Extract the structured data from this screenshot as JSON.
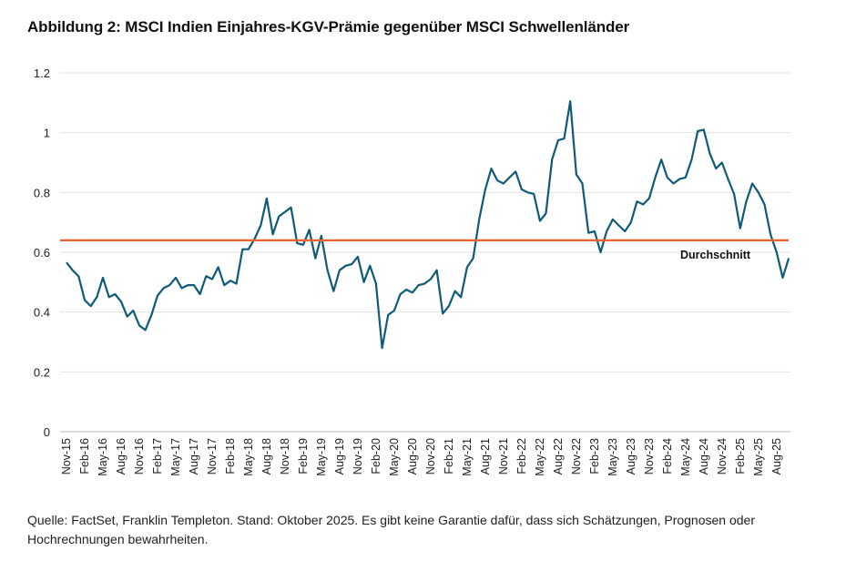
{
  "title": "Abbildung 2: MSCI Indien Einjahres-KGV-Prämie gegenüber MSCI Schwellenländer",
  "footer": "Quelle: FactSet, Franklin Templeton. Stand: Oktober 2025. Es gibt keine Garantie dafür, dass sich Schätzungen, Prognosen oder Hochrechnungen bewahrheiten.",
  "chart_data": {
    "type": "line",
    "title": "Abbildung 2: MSCI Indien Einjahres-KGV-Prämie gegenüber MSCI Schwellenländer",
    "xlabel": "",
    "ylabel": "",
    "ylim": [
      0,
      1.2
    ],
    "y_ticks": [
      "0",
      "0.2",
      "0.4",
      "0.6",
      "0.8",
      "1",
      "1.2"
    ],
    "grid": true,
    "x_start": "Nov-15",
    "x_frequency": "monthly",
    "x_ticks": [
      "Nov-15",
      "Feb-16",
      "May-16",
      "Aug-16",
      "Nov-16",
      "Feb-17",
      "May-17",
      "Aug-17",
      "Nov-17",
      "Feb-18",
      "May-18",
      "Aug-18",
      "Nov-18",
      "Feb-19",
      "May-19",
      "Aug-19",
      "Nov-19",
      "Feb-20",
      "May-20",
      "Aug-20",
      "Nov-20",
      "Feb-21",
      "May-21",
      "Aug-21",
      "Nov-21",
      "Feb-22",
      "May-22",
      "Aug-22",
      "Nov-22",
      "Feb-23",
      "May-23",
      "Aug-23",
      "Nov-23",
      "Feb-24",
      "May-24",
      "Aug-24",
      "Nov-24",
      "Feb-25",
      "May-25",
      "Aug-25"
    ],
    "series": [
      {
        "name": "KGV-Prämie",
        "color": "#0f5a78",
        "values": [
          0.566,
          0.54,
          0.52,
          0.44,
          0.42,
          0.45,
          0.515,
          0.45,
          0.46,
          0.435,
          0.385,
          0.405,
          0.355,
          0.34,
          0.39,
          0.455,
          0.48,
          0.49,
          0.515,
          0.48,
          0.49,
          0.49,
          0.46,
          0.52,
          0.51,
          0.55,
          0.49,
          0.505,
          0.495,
          0.61,
          0.61,
          0.645,
          0.69,
          0.78,
          0.66,
          0.72,
          0.735,
          0.75,
          0.63,
          0.625,
          0.675,
          0.58,
          0.655,
          0.54,
          0.47,
          0.54,
          0.555,
          0.56,
          0.585,
          0.5,
          0.555,
          0.495,
          0.28,
          0.39,
          0.405,
          0.46,
          0.475,
          0.465,
          0.49,
          0.495,
          0.51,
          0.54,
          0.395,
          0.42,
          0.47,
          0.45,
          0.55,
          0.58,
          0.71,
          0.81,
          0.88,
          0.84,
          0.83,
          0.85,
          0.87,
          0.81,
          0.8,
          0.795,
          0.705,
          0.73,
          0.91,
          0.975,
          0.98,
          1.105,
          0.86,
          0.83,
          0.665,
          0.67,
          0.6,
          0.67,
          0.71,
          0.69,
          0.67,
          0.7,
          0.77,
          0.76,
          0.78,
          0.85,
          0.91,
          0.85,
          0.83,
          0.845,
          0.85,
          0.91,
          1.005,
          1.01,
          0.93,
          0.88,
          0.9,
          0.845,
          0.795,
          0.68,
          0.77,
          0.83,
          0.8,
          0.76,
          0.66,
          0.6,
          0.515,
          0.58
        ]
      },
      {
        "name": "Durchschnitt",
        "color": "#e8632b",
        "constant": 0.64
      }
    ],
    "annotations": [
      {
        "text": "Durchschnitt",
        "x": "May-25",
        "y": 0.6
      }
    ]
  }
}
